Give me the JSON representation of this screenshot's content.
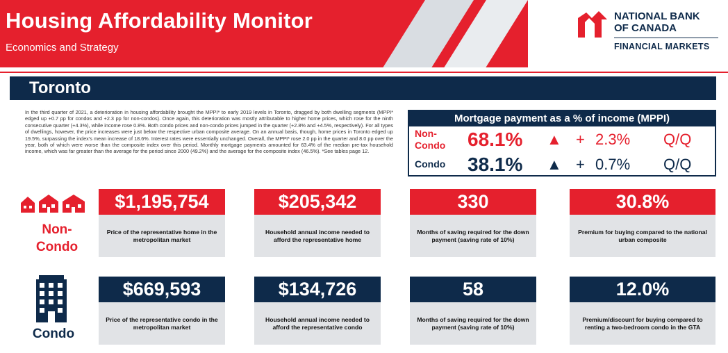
{
  "header": {
    "title": "Housing Affordability Monitor",
    "subtitle": "Economics and Strategy"
  },
  "logo": {
    "line1": "NATIONAL BANK",
    "line2": "OF CANADA",
    "line3": "FINANCIAL MARKETS"
  },
  "section": {
    "title": "Toronto"
  },
  "paragraph": "In the third quarter of 2021, a deterioration in housing affordability brought the MPPI* to early 2019 levels in Toronto, dragged by both dwelling segments (MPPI* edged up +0.7 pp for condos and +2.3 pp for non-condos). Once again, this deterioration was mostly attributable to higher home prices, which rose for the ninth consecutive quarter (+4.3%), while income rose 0.8%. Both condo prices and non-condo prices jumped in the quarter (+2.8% and +4.5%, respectively). For all types of dwellings, however, the price increases were just below the respective urban composite average. On an annual basis, though, home prices in Toronto edged up 19.5%, surpassing the index's mean increase of 18.6%. Interest rates were essentially unchanged. Overall, the MPPI* rose 2.0 pp in the quarter and 8.0 pp over the year, both of which were worse than the composite index over this period. Monthly mortgage payments amounted for 63.4% of the median pre-tax household income, which was far greater than the average for the period since 2000 (49.2%) and the average for the composite index (46.5%). *See tables page 12.",
  "mppi": {
    "title": "Mortgage payment as a % of income (MPPI)",
    "rows": [
      {
        "label_a": "Non-",
        "label_b": "Condo",
        "value": "68.1%",
        "arrow": "▲",
        "sign": "+",
        "change": "2.3%",
        "period": "Q/Q",
        "color": "#e5202d"
      },
      {
        "label_a": "Condo",
        "label_b": "",
        "value": "38.1%",
        "arrow": "▲",
        "sign": "+",
        "change": "0.7%",
        "period": "Q/Q",
        "color": "#0e2a4a"
      }
    ]
  },
  "rows": {
    "non_condo": {
      "label_a": "Non-",
      "label_b": "Condo",
      "icon": "houses-icon",
      "cards": [
        {
          "value": "$1,195,754",
          "desc": "Price of the representative home in the metropolitan market"
        },
        {
          "value": "$205,342",
          "desc": "Household annual income needed to afford the representative home"
        },
        {
          "value": "330",
          "desc": "Months of saving required for the down payment (saving rate of 10%)"
        },
        {
          "value": "30.8%",
          "desc": "Premium for buying compared to the national urban composite"
        }
      ]
    },
    "condo": {
      "label": "Condo",
      "icon": "building-icon",
      "cards": [
        {
          "value": "$669,593",
          "desc": "Price of the representative condo in the metropolitan market"
        },
        {
          "value": "$134,726",
          "desc": "Household annual income needed to afford the representative condo"
        },
        {
          "value": "58",
          "desc": "Months of saving required for the down payment (saving rate of 10%)"
        },
        {
          "value": "12.0%",
          "desc": "Premium/discount for buying compared to renting a two-bedroom condo in the GTA"
        }
      ]
    }
  },
  "colors": {
    "red": "#e5202d",
    "navy": "#0e2a4a",
    "grey": "#e1e3e6"
  }
}
